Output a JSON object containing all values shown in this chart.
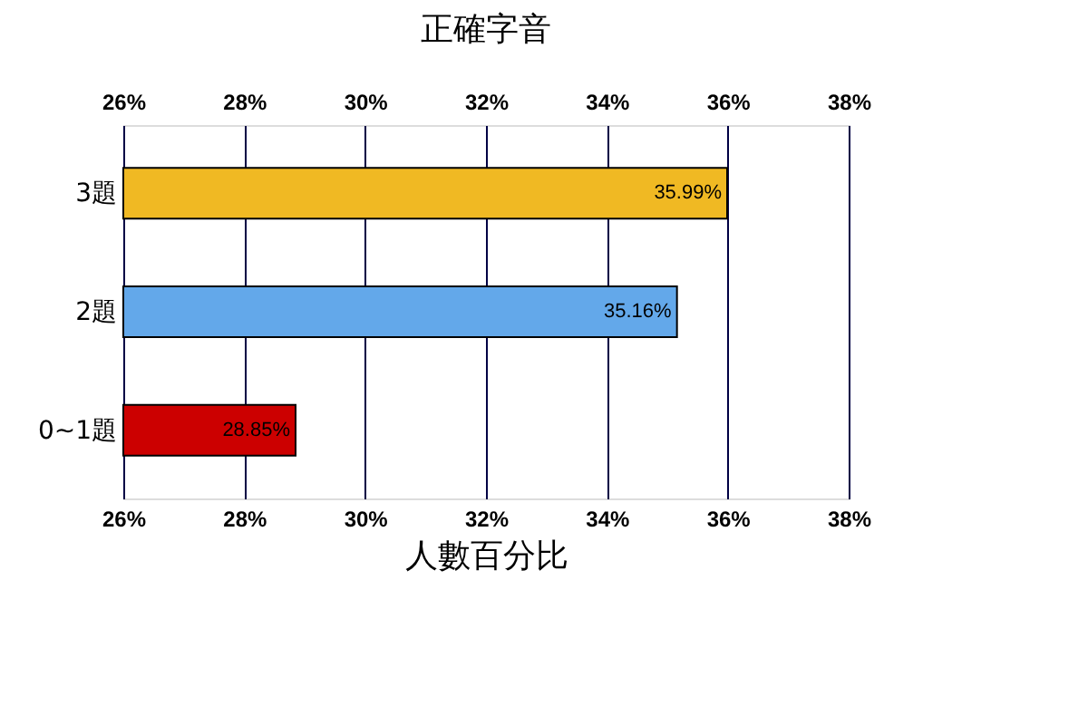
{
  "chart_data": {
    "type": "bar",
    "orientation": "horizontal",
    "title": "正確字音",
    "xlabel": "人數百分比",
    "categories": [
      "3題",
      "2題",
      "0~1題"
    ],
    "values": [
      35.99,
      35.16,
      28.85
    ],
    "colors": [
      "#f0b923",
      "#63a8ea",
      "#cc0000"
    ],
    "value_labels": [
      "35.99%",
      "35.16%",
      "28.85%"
    ],
    "xlim": [
      26,
      38
    ],
    "xticks": [
      {
        "value": 26,
        "label": "26%"
      },
      {
        "value": 28,
        "label": "28%"
      },
      {
        "value": 30,
        "label": "30%"
      },
      {
        "value": 32,
        "label": "32%"
      },
      {
        "value": 34,
        "label": "34%"
      },
      {
        "value": 36,
        "label": "36%"
      },
      {
        "value": 38,
        "label": "38%"
      }
    ],
    "x2lim": [
      26,
      38
    ],
    "x2ticks": [
      {
        "value": 26,
        "label": "26%"
      },
      {
        "value": 28,
        "label": "28%"
      },
      {
        "value": 30,
        "label": "30%"
      },
      {
        "value": 32,
        "label": "32%"
      },
      {
        "value": 34,
        "label": "34%"
      },
      {
        "value": 36,
        "label": "36%"
      },
      {
        "value": 38,
        "label": "38%"
      }
    ],
    "grid": "x"
  }
}
